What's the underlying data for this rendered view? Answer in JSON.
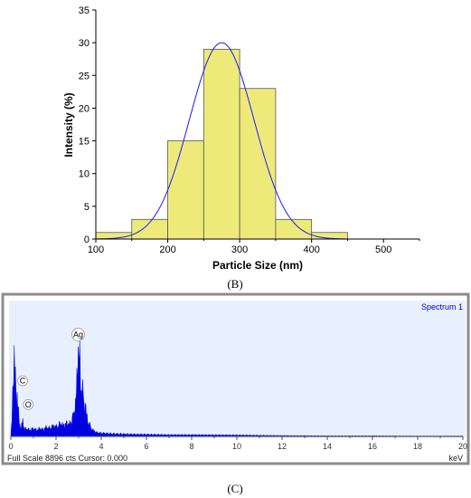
{
  "chart_data": [
    {
      "type": "bar",
      "panel_label": "(B)",
      "xlabel": "Particle Size (nm)",
      "ylabel": "Intensity (%)",
      "xlim": [
        100,
        550
      ],
      "ylim": [
        0,
        35
      ],
      "x_ticks": [
        100,
        200,
        300,
        400,
        500
      ],
      "y_ticks": [
        0,
        5,
        10,
        15,
        20,
        25,
        30,
        35
      ],
      "bins": [
        {
          "from": 100,
          "to": 150,
          "value": 1
        },
        {
          "from": 150,
          "to": 200,
          "value": 3
        },
        {
          "from": 200,
          "to": 250,
          "value": 15
        },
        {
          "from": 250,
          "to": 300,
          "value": 29
        },
        {
          "from": 300,
          "to": 350,
          "value": 23
        },
        {
          "from": 350,
          "to": 400,
          "value": 3
        },
        {
          "from": 400,
          "to": 450,
          "value": 1
        }
      ],
      "fit": {
        "type": "gaussian",
        "mean": 275,
        "sigma": 45,
        "peak": 30
      },
      "bar_color": "#eeea7a",
      "fit_color": "#1a1aff"
    },
    {
      "type": "area",
      "panel_label": "(C)",
      "legend": "Spectrum 1",
      "xlabel": "keV",
      "xlim": [
        0,
        20
      ],
      "x_ticks": [
        0,
        2,
        4,
        6,
        8,
        10,
        12,
        14,
        16,
        18,
        20
      ],
      "ylim": [
        0,
        1
      ],
      "footer": "Full Scale 8896 cts Cursor: 0.000",
      "peaks": [
        {
          "label": "C",
          "x": 0.28,
          "y": 0.38
        },
        {
          "label": "O",
          "x": 0.53,
          "y": 0.2
        },
        {
          "label": "Ag",
          "x": 2.98,
          "y": 0.73
        }
      ],
      "x": [
        0.0,
        0.05,
        0.1,
        0.15,
        0.2,
        0.25,
        0.28,
        0.32,
        0.38,
        0.45,
        0.5,
        0.53,
        0.57,
        0.62,
        0.7,
        0.8,
        0.9,
        1.0,
        1.1,
        1.2,
        1.3,
        1.4,
        1.5,
        1.6,
        1.7,
        1.8,
        1.9,
        2.0,
        2.1,
        2.2,
        2.3,
        2.4,
        2.5,
        2.6,
        2.7,
        2.8,
        2.9,
        2.98,
        3.05,
        3.1,
        3.15,
        3.2,
        3.25,
        3.3,
        3.35,
        3.4,
        3.5,
        3.6,
        3.7,
        3.8,
        4.0,
        4.5,
        5.0,
        5.5,
        6.0,
        7.0,
        8.0,
        9.0,
        10.0,
        11.0,
        12.0,
        14.0,
        16.0,
        18.0,
        20.0
      ],
      "y": [
        0.0,
        0.12,
        0.45,
        0.6,
        0.42,
        0.3,
        0.33,
        0.2,
        0.1,
        0.06,
        0.1,
        0.12,
        0.08,
        0.05,
        0.06,
        0.05,
        0.05,
        0.06,
        0.05,
        0.05,
        0.06,
        0.05,
        0.06,
        0.07,
        0.06,
        0.07,
        0.08,
        0.07,
        0.08,
        0.1,
        0.08,
        0.09,
        0.1,
        0.09,
        0.12,
        0.18,
        0.3,
        0.7,
        0.55,
        0.35,
        0.4,
        0.3,
        0.22,
        0.25,
        0.15,
        0.12,
        0.08,
        0.05,
        0.04,
        0.03,
        0.025,
        0.02,
        0.018,
        0.016,
        0.015,
        0.012,
        0.012,
        0.011,
        0.01,
        0.008,
        0.006,
        0.004,
        0.004,
        0.003,
        0.003
      ],
      "fill_color": "#0000e0",
      "panel_bg": "#e8f0ff"
    }
  ]
}
